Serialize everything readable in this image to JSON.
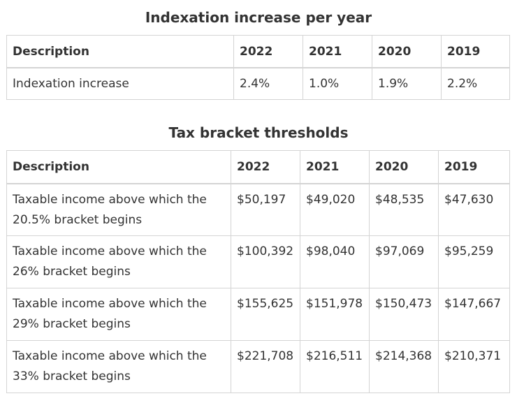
{
  "indexation": {
    "caption": "Indexation increase per year",
    "headers": [
      "Description",
      "2022",
      "2021",
      "2020",
      "2019"
    ],
    "rows": [
      [
        "Indexation increase",
        "2.4%",
        "1.0%",
        "1.9%",
        "2.2%"
      ]
    ]
  },
  "brackets": {
    "caption": "Tax bracket thresholds",
    "headers": [
      "Description",
      "2022",
      "2021",
      "2020",
      "2019"
    ],
    "rows": [
      [
        "Taxable income above which the 20.5% bracket begins",
        "$50,197",
        "$49,020",
        "$48,535",
        "$47,630"
      ],
      [
        "Taxable income above which the 26% bracket begins",
        "$100,392",
        "$98,040",
        "$97,069",
        "$95,259"
      ],
      [
        "Taxable income above which the 29% bracket begins",
        "$155,625",
        "$151,978",
        "$150,473",
        "$147,667"
      ],
      [
        "Taxable income above which the 33% bracket begins",
        "$221,708",
        "$216,511",
        "$214,368",
        "$210,371"
      ]
    ]
  }
}
